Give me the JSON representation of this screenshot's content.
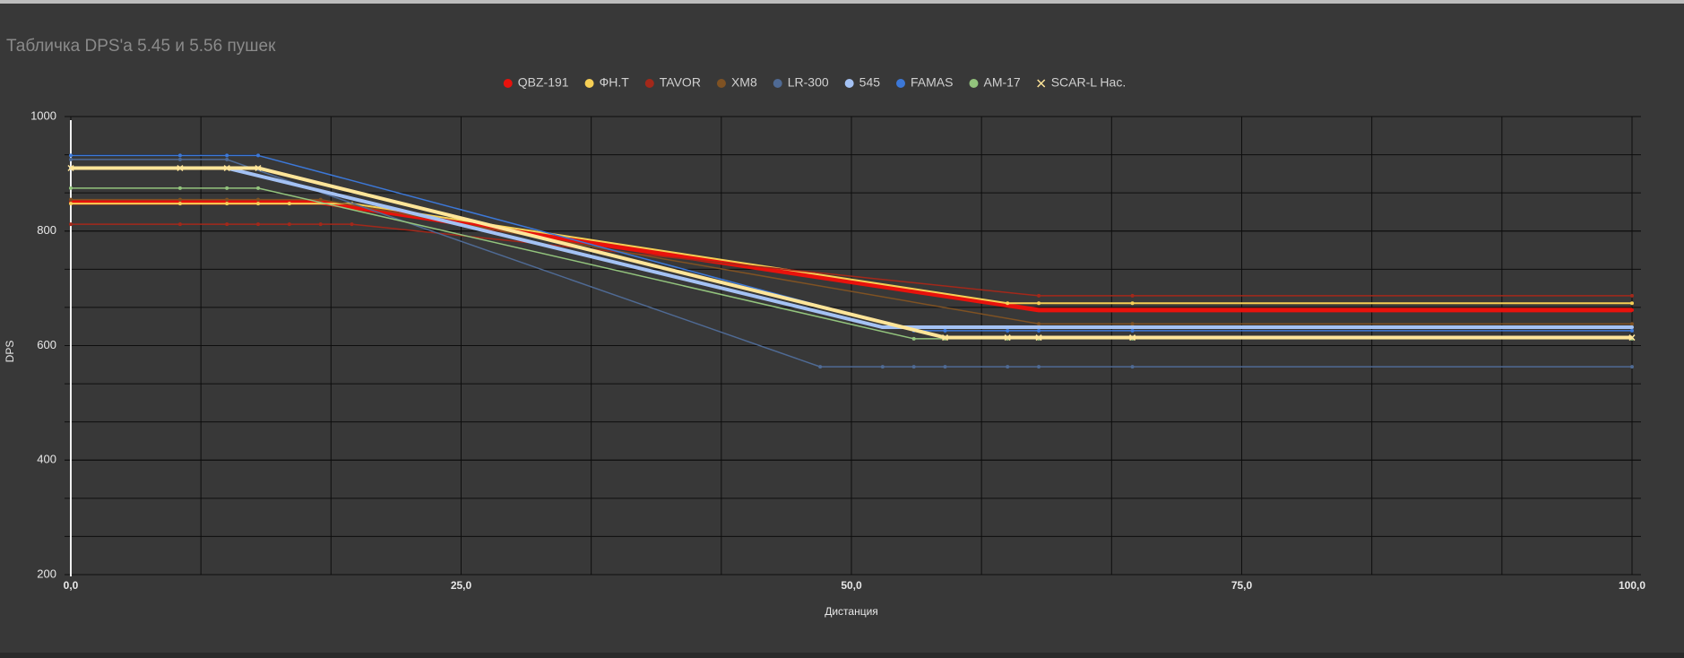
{
  "chart_data": {
    "type": "line",
    "title": "Табличка DPS'а 5.45 и 5.56 пушек",
    "x_label": "Дистанция",
    "y_label": "DPS",
    "xlim": [
      0,
      100
    ],
    "ylim": [
      200,
      1000
    ],
    "xticks": [
      {
        "value": 0,
        "label": "0,0"
      },
      {
        "value": 25,
        "label": "25,0"
      },
      {
        "value": 50,
        "label": "50,0"
      },
      {
        "value": 75,
        "label": "75,0"
      },
      {
        "value": 100,
        "label": "100,0"
      }
    ],
    "yticks": [
      200,
      400,
      600,
      800,
      1000
    ],
    "grid": true,
    "legend": "top",
    "series": [
      {
        "name": "QBZ-191",
        "color": "#e8120c",
        "line_width": 5,
        "marker": "circle",
        "x": [
          0,
          7,
          10,
          12,
          14,
          16,
          62,
          68,
          100
        ],
        "values": [
          850,
          850,
          850,
          850,
          850,
          850,
          662,
          662,
          662
        ]
      },
      {
        "name": "ФН.Т",
        "color": "#f6cf55",
        "line_width": 2,
        "marker": "circle",
        "x": [
          0,
          7,
          10,
          12,
          14,
          18,
          60,
          62,
          68,
          100
        ],
        "values": [
          848,
          848,
          848,
          848,
          848,
          848,
          674,
          674,
          674,
          674
        ]
      },
      {
        "name": "TAVOR",
        "color": "#a3281a",
        "line_width": 1.5,
        "marker": "circle",
        "x": [
          0,
          7,
          10,
          12,
          14,
          16,
          18,
          62,
          68,
          100
        ],
        "values": [
          812,
          812,
          812,
          812,
          812,
          812,
          812,
          687,
          687,
          687
        ]
      },
      {
        "name": "XM8",
        "color": "#7f5223",
        "line_width": 1.5,
        "marker": "circle",
        "x": [
          0,
          7,
          10,
          12,
          16,
          62,
          68,
          100
        ],
        "values": [
          855,
          855,
          855,
          855,
          855,
          638,
          638,
          638
        ]
      },
      {
        "name": "LR-300",
        "color": "#4f6a94",
        "line_width": 1.5,
        "marker": "circle",
        "x": [
          0,
          7,
          10,
          48,
          52,
          54,
          56,
          60,
          62,
          68,
          100
        ],
        "values": [
          925,
          925,
          925,
          563,
          563,
          563,
          563,
          563,
          563,
          563,
          563
        ]
      },
      {
        "name": "545",
        "color": "#a4c2f4",
        "line_width": 4,
        "marker": "circle",
        "x": [
          0,
          7,
          10,
          52,
          54,
          56,
          60,
          62,
          68,
          100
        ],
        "values": [
          910,
          910,
          910,
          632,
          632,
          632,
          632,
          632,
          632,
          632
        ]
      },
      {
        "name": "FAMAS",
        "color": "#3c78d8",
        "line_width": 1.5,
        "marker": "circle",
        "x": [
          0,
          7,
          10,
          12,
          54,
          56,
          60,
          62,
          68,
          100
        ],
        "values": [
          932,
          932,
          932,
          932,
          626,
          626,
          626,
          626,
          626,
          626
        ]
      },
      {
        "name": "AM-17",
        "color": "#93c47d",
        "line_width": 1.5,
        "marker": "circle",
        "x": [
          0,
          7,
          10,
          12,
          54,
          56,
          60,
          62,
          68,
          100
        ],
        "values": [
          875,
          875,
          875,
          875,
          612,
          612,
          612,
          612,
          612,
          612
        ]
      },
      {
        "name": "SCAR-L Нас.",
        "color": "#ffe599",
        "line_width": 4,
        "marker": "x",
        "x": [
          0,
          7,
          10,
          12,
          56,
          60,
          62,
          68,
          100
        ],
        "values": [
          910,
          910,
          910,
          910,
          614,
          614,
          614,
          614,
          614
        ]
      }
    ]
  }
}
